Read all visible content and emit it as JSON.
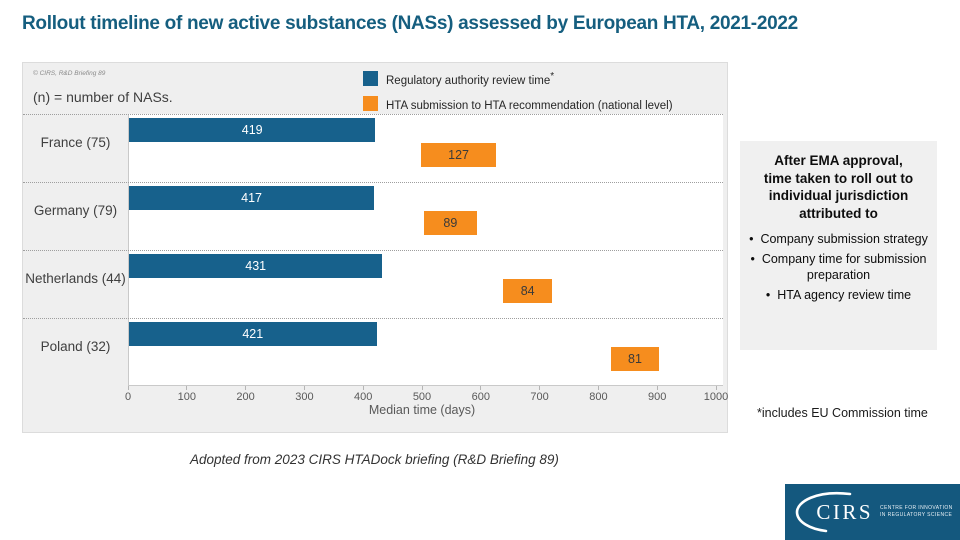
{
  "slide": {
    "title": "Rollout timeline of new active substances (NASs) assessed by European HTA, 2021-2022",
    "caption": "Adopted from 2023 CIRS HTADock briefing (R&D Briefing 89)",
    "footnote": "*includes EU Commission time"
  },
  "chart_panel": {
    "copyright": "© CIRS, R&D Briefing 89",
    "note": "(n) = number of NASs.",
    "legend": [
      {
        "label": "Regulatory authority review time",
        "suffix": "*",
        "color": "#17618C"
      },
      {
        "label": "HTA submission to HTA recommendation (national level)",
        "suffix": "",
        "color": "#F68D1E"
      }
    ]
  },
  "chart_data": {
    "type": "bar",
    "orientation": "horizontal",
    "title": "Rollout timeline of new active substances (NASs) assessed by European HTA, 2021-2022",
    "categories": [
      "France (75)",
      "Germany (79)",
      "Netherlands (44)",
      "Poland (32)"
    ],
    "series": [
      {
        "name": "Regulatory authority review time",
        "color": "#17618C",
        "label_color": "#FFFFFF",
        "starts": [
          0,
          0,
          0,
          0
        ],
        "values": [
          419,
          417,
          431,
          421
        ]
      },
      {
        "name": "HTA submission to HTA recommendation (national level)",
        "color": "#F68D1E",
        "label_color": "#3A3A3A",
        "starts": [
          497,
          502,
          636,
          820
        ],
        "values": [
          127,
          89,
          84,
          81
        ]
      }
    ],
    "xlabel": "Median time (days)",
    "xlim": [
      0,
      1000
    ],
    "xticks": [
      0,
      100,
      200,
      300,
      400,
      500,
      600,
      700,
      800,
      900,
      1000
    ],
    "grid": false,
    "legend_position": "top-right"
  },
  "info_box": {
    "heading": "After EMA approval, time taken to roll out to individual jurisdiction attributed to",
    "heading_lines": [
      "After EMA approval,",
      "time taken to roll out to",
      "individual jurisdiction",
      "attributed to"
    ],
    "bullets": [
      "Company submission strategy",
      "Company time for submission preparation",
      "HTA agency review time"
    ]
  },
  "logo": {
    "name": "CIRS",
    "tagline_line1": "Centre for Innovation",
    "tagline_line2": "in Regulatory Science"
  },
  "colors": {
    "title": "#155E7F",
    "bar_blue": "#17618C",
    "bar_orange": "#F68D1E",
    "panel_bg": "#EFEFEF",
    "info_box_bg": "#F0F0F0",
    "logo_bg": "#14587E"
  }
}
